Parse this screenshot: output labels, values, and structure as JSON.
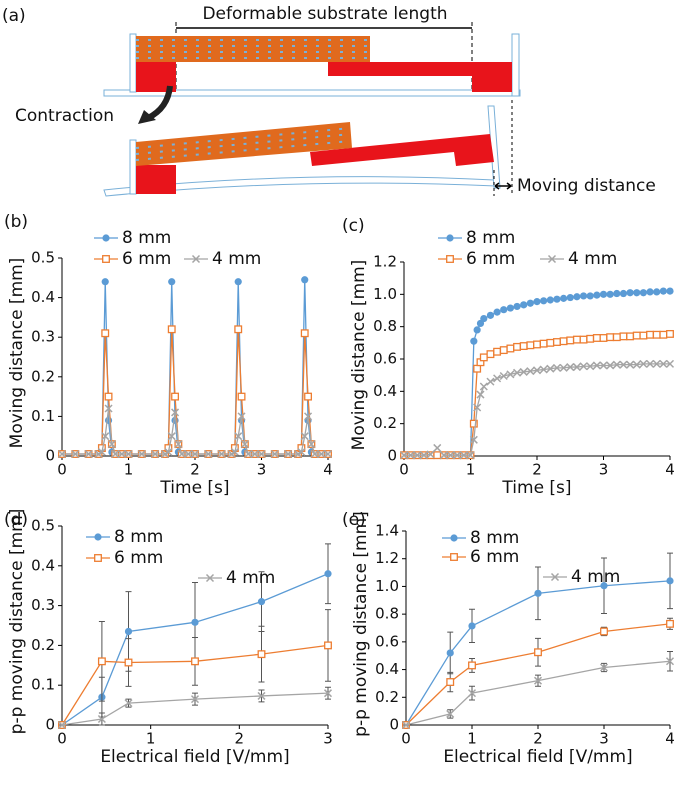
{
  "diagram": {
    "panel": "(a)",
    "labels": [
      "Deformable substrate length",
      "Contraction",
      "Moving distance"
    ]
  },
  "chart_data": [
    {
      "type": "line",
      "panel": "(b)",
      "xlabel": "Time [s]",
      "ylabel": "Moving distance [mm]",
      "x": [
        0,
        0.2,
        0.4,
        0.55,
        0.6,
        0.65,
        0.7,
        0.75,
        0.8,
        0.9,
        1,
        1.2,
        1.4,
        1.55,
        1.6,
        1.65,
        1.7,
        1.75,
        1.8,
        1.9,
        2,
        2.2,
        2.4,
        2.55,
        2.6,
        2.65,
        2.7,
        2.75,
        2.8,
        2.9,
        3,
        3.2,
        3.4,
        3.55,
        3.6,
        3.65,
        3.7,
        3.75,
        3.8,
        3.9,
        4
      ],
      "xlim": [
        0,
        4
      ],
      "xticks": [
        0,
        1,
        2,
        3,
        4
      ],
      "ylim": [
        0,
        0.5
      ],
      "yticks": [
        0,
        0.1,
        0.2,
        0.3,
        0.4,
        0.5
      ],
      "series": [
        {
          "name": "8 mm",
          "color": "#5b9bd5",
          "marker": "circle",
          "values": [
            0.005,
            0.005,
            0.005,
            0.005,
            0.02,
            0.44,
            0.09,
            0.01,
            0.005,
            0.005,
            0.005,
            0.005,
            0.005,
            0.005,
            0.02,
            0.44,
            0.09,
            0.01,
            0.005,
            0.005,
            0.005,
            0.005,
            0.005,
            0.005,
            0.02,
            0.44,
            0.09,
            0.01,
            0.005,
            0.005,
            0.005,
            0.005,
            0.005,
            0.005,
            0.02,
            0.445,
            0.09,
            0.01,
            0.005,
            0.005,
            0.005
          ]
        },
        {
          "name": "6 mm",
          "color": "#ed7d31",
          "marker": "square",
          "values": [
            0.005,
            0.005,
            0.005,
            0.005,
            0.02,
            0.31,
            0.15,
            0.03,
            0.005,
            0.005,
            0.005,
            0.005,
            0.005,
            0.005,
            0.02,
            0.32,
            0.15,
            0.03,
            0.005,
            0.005,
            0.005,
            0.005,
            0.005,
            0.005,
            0.02,
            0.32,
            0.15,
            0.03,
            0.005,
            0.005,
            0.005,
            0.005,
            0.005,
            0.005,
            0.02,
            0.31,
            0.15,
            0.03,
            0.005,
            0.005,
            0.005
          ]
        },
        {
          "name": "4 mm",
          "color": "#a5a5a5",
          "marker": "x",
          "values": [
            0.005,
            0.005,
            0.005,
            0.005,
            0.01,
            0.05,
            0.12,
            0.03,
            0.005,
            0.005,
            0.005,
            0.005,
            0.005,
            0.005,
            0.01,
            0.05,
            0.11,
            0.03,
            0.005,
            0.005,
            0.005,
            0.005,
            0.005,
            0.005,
            0.01,
            0.05,
            0.1,
            0.03,
            0.005,
            0.005,
            0.005,
            0.005,
            0.005,
            0.005,
            0.01,
            0.05,
            0.1,
            0.03,
            0.005,
            0.005,
            0.005
          ]
        }
      ]
    },
    {
      "type": "line",
      "panel": "(c)",
      "xlabel": "Time [s]",
      "ylabel": "Moving distance [mm]",
      "x": [
        0,
        0.1,
        0.2,
        0.3,
        0.4,
        0.5,
        0.6,
        0.7,
        0.8,
        0.9,
        1,
        1.05,
        1.1,
        1.15,
        1.2,
        1.3,
        1.4,
        1.5,
        1.6,
        1.7,
        1.8,
        1.9,
        2,
        2.1,
        2.2,
        2.3,
        2.4,
        2.5,
        2.6,
        2.7,
        2.8,
        2.9,
        3,
        3.1,
        3.2,
        3.3,
        3.4,
        3.5,
        3.6,
        3.7,
        3.8,
        3.9,
        4
      ],
      "xlim": [
        0,
        4
      ],
      "xticks": [
        0,
        1,
        2,
        3,
        4
      ],
      "ylim": [
        0,
        1.2
      ],
      "yticks": [
        0,
        0.2,
        0.4,
        0.6,
        0.8,
        {
          "value": 1,
          "label": "1.0"
        },
        1.2
      ],
      "series": [
        {
          "name": "8 mm",
          "color": "#5b9bd5",
          "marker": "circle",
          "values": [
            0.005,
            0.005,
            0.005,
            0.005,
            0.005,
            0.005,
            0.005,
            0.005,
            0.005,
            0.005,
            0.005,
            0.71,
            0.78,
            0.82,
            0.85,
            0.87,
            0.89,
            0.905,
            0.915,
            0.925,
            0.935,
            0.945,
            0.955,
            0.96,
            0.965,
            0.97,
            0.975,
            0.98,
            0.985,
            0.99,
            0.99,
            0.995,
            1,
            1,
            1.005,
            1.005,
            1.01,
            1.01,
            1.01,
            1.015,
            1.015,
            1.02,
            1.02
          ]
        },
        {
          "name": "6 mm",
          "color": "#ed7d31",
          "marker": "square",
          "values": [
            0.005,
            0.005,
            0.005,
            0.005,
            0.005,
            0.005,
            0.005,
            0.005,
            0.005,
            0.005,
            0.005,
            0.2,
            0.54,
            0.58,
            0.61,
            0.63,
            0.645,
            0.655,
            0.665,
            0.675,
            0.68,
            0.685,
            0.69,
            0.695,
            0.7,
            0.705,
            0.71,
            0.715,
            0.72,
            0.72,
            0.725,
            0.73,
            0.73,
            0.735,
            0.735,
            0.74,
            0.74,
            0.745,
            0.745,
            0.75,
            0.75,
            0.75,
            0.755
          ]
        },
        {
          "name": "4 mm",
          "color": "#a5a5a5",
          "marker": "x",
          "values": [
            0.005,
            0.005,
            0.005,
            0.005,
            0.01,
            0.05,
            0.005,
            0.005,
            0.005,
            0.005,
            0.005,
            0.1,
            0.3,
            0.38,
            0.43,
            0.46,
            0.48,
            0.495,
            0.505,
            0.515,
            0.52,
            0.525,
            0.53,
            0.535,
            0.54,
            0.545,
            0.545,
            0.55,
            0.55,
            0.555,
            0.555,
            0.56,
            0.56,
            0.56,
            0.565,
            0.565,
            0.565,
            0.565,
            0.57,
            0.57,
            0.57,
            0.57,
            0.57
          ]
        }
      ]
    },
    {
      "type": "line",
      "panel": "(d)",
      "xlabel": "Electrical field [V/mm]",
      "ylabel": "p-p moving distance [mm]",
      "x": [
        0,
        0.45,
        0.75,
        1.5,
        2.25,
        3
      ],
      "xlim": [
        0,
        3
      ],
      "xticks": [
        0,
        1,
        2,
        3
      ],
      "ylim": [
        0,
        0.5
      ],
      "yticks": [
        0,
        0.1,
        0.2,
        0.3,
        0.4,
        0.5
      ],
      "series": [
        {
          "name": "8 mm",
          "color": "#5b9bd5",
          "marker": "circle",
          "values": [
            0,
            0.07,
            0.235,
            0.258,
            0.31,
            0.38
          ],
          "errors": [
            0,
            0.05,
            0.1,
            0.1,
            0.075,
            0.075
          ]
        },
        {
          "name": "6 mm",
          "color": "#ed7d31",
          "marker": "square",
          "values": [
            0,
            0.16,
            0.157,
            0.16,
            0.178,
            0.2
          ],
          "errors": [
            0,
            0.1,
            0.06,
            0.06,
            0.07,
            0.09
          ]
        },
        {
          "name": "4 mm",
          "color": "#a5a5a5",
          "marker": "x",
          "values": [
            0,
            0.015,
            0.055,
            0.065,
            0.073,
            0.08
          ],
          "errors": [
            0,
            0.015,
            0.01,
            0.015,
            0.015,
            0.015
          ]
        }
      ]
    },
    {
      "type": "line",
      "panel": "(e)",
      "xlabel": "Electrical field [V/mm]",
      "ylabel": "p-p moving distance [mm]",
      "x": [
        0,
        0.67,
        1,
        2,
        3,
        4
      ],
      "xlim": [
        0,
        4
      ],
      "xticks": [
        0,
        1,
        2,
        3,
        4
      ],
      "ylim": [
        0,
        1.4
      ],
      "yticks": [
        0,
        0.2,
        0.4,
        0.6,
        0.8,
        {
          "value": 1,
          "label": "1.0"
        },
        1.2,
        1.4
      ],
      "series": [
        {
          "name": "8 mm",
          "color": "#5b9bd5",
          "marker": "circle",
          "values": [
            0,
            0.52,
            0.715,
            0.95,
            1.005,
            1.04
          ],
          "errors": [
            0,
            0.15,
            0.12,
            0.19,
            0.2,
            0.2
          ]
        },
        {
          "name": "6 mm",
          "color": "#ed7d31",
          "marker": "square",
          "values": [
            0,
            0.31,
            0.43,
            0.525,
            0.675,
            0.73
          ],
          "errors": [
            0,
            0.07,
            0.05,
            0.1,
            0.03,
            0.04
          ]
        },
        {
          "name": "4 mm",
          "color": "#a5a5a5",
          "marker": "x",
          "values": [
            0,
            0.08,
            0.23,
            0.32,
            0.415,
            0.46
          ],
          "errors": [
            0,
            0.03,
            0.05,
            0.04,
            0.03,
            0.07
          ]
        }
      ]
    }
  ]
}
